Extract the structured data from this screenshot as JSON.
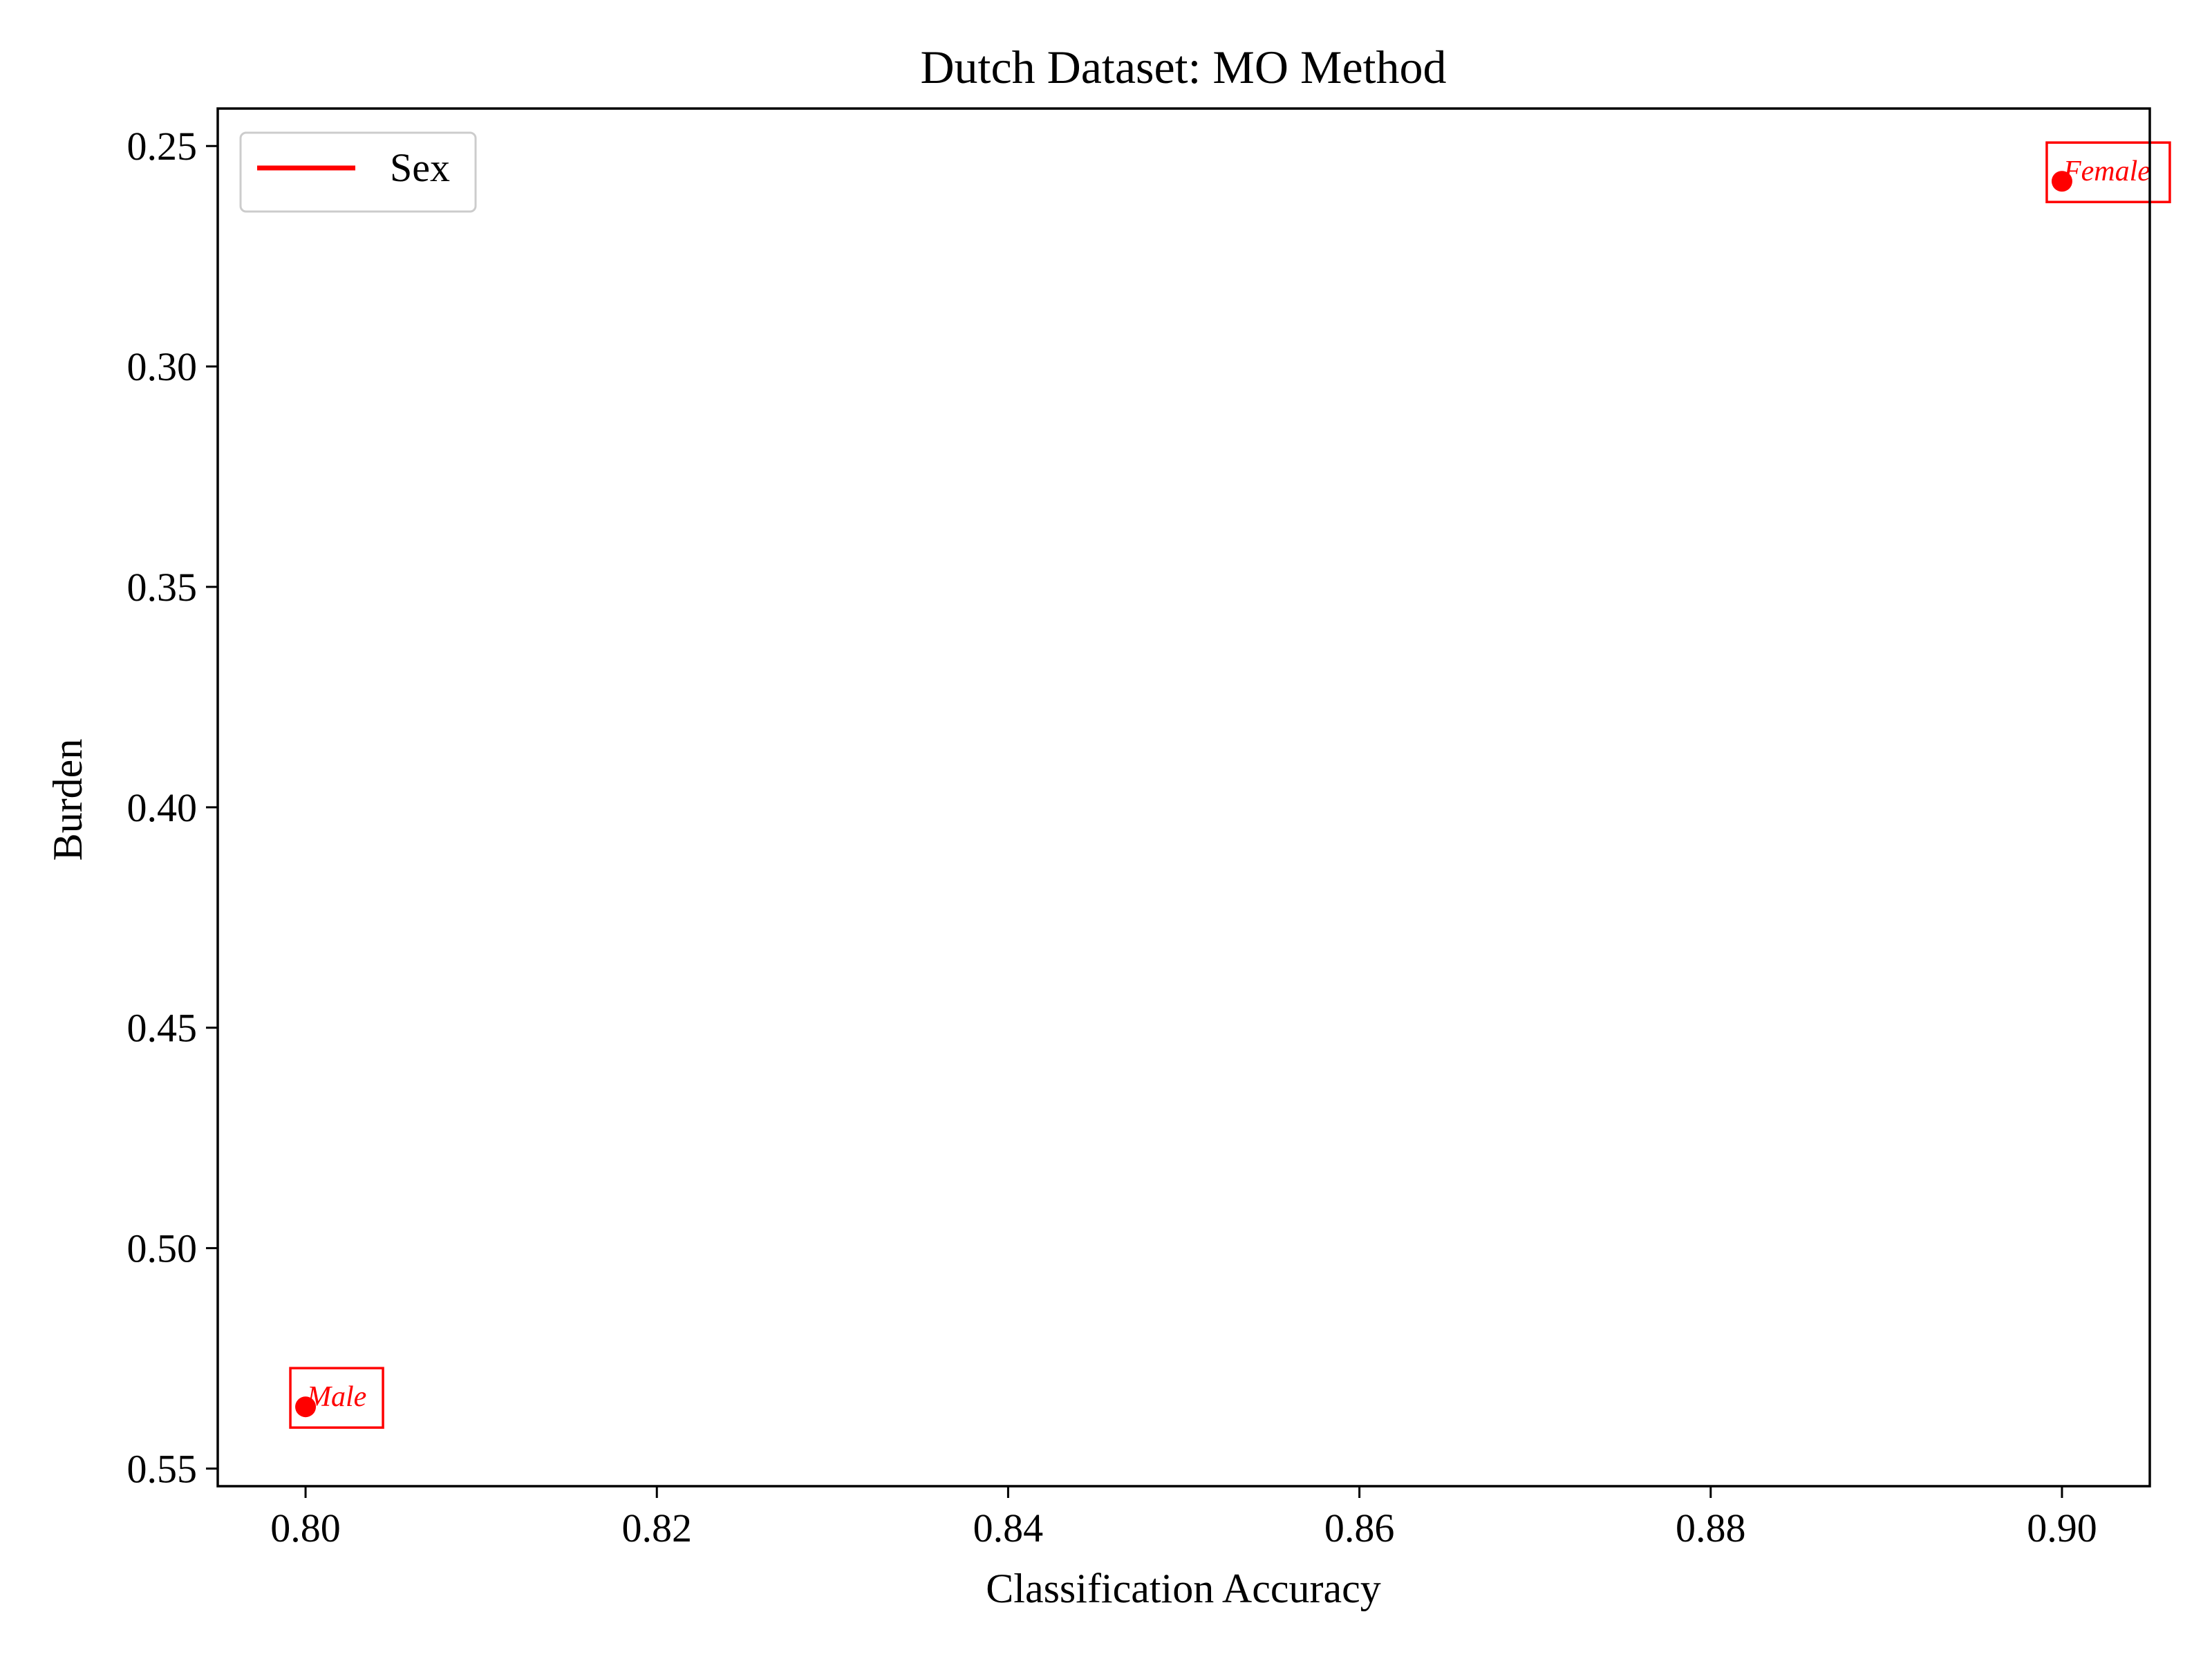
{
  "chart_data": {
    "type": "scatter",
    "title": "Dutch Dataset: MO Method",
    "xlabel": "Classification Accuracy",
    "ylabel": "Burden",
    "xlim": [
      0.795,
      0.905
    ],
    "ylim": [
      0.554,
      0.2415
    ],
    "y_inverted": true,
    "xticks": [
      "0.80",
      "0.82",
      "0.84",
      "0.86",
      "0.88",
      "0.90"
    ],
    "yticks": [
      "0.25",
      "0.30",
      "0.35",
      "0.40",
      "0.45",
      "0.50",
      "0.55"
    ],
    "grid": false,
    "legend": {
      "position": "top-left",
      "entries": [
        {
          "label": "Sex",
          "color": "#ff0000"
        }
      ]
    },
    "series": [
      {
        "name": "Sex",
        "color": "#ff0000",
        "points": [
          {
            "x": 0.8,
            "y": 0.536,
            "label": "Male"
          },
          {
            "x": 0.9,
            "y": 0.258,
            "label": "Female"
          }
        ]
      }
    ]
  }
}
